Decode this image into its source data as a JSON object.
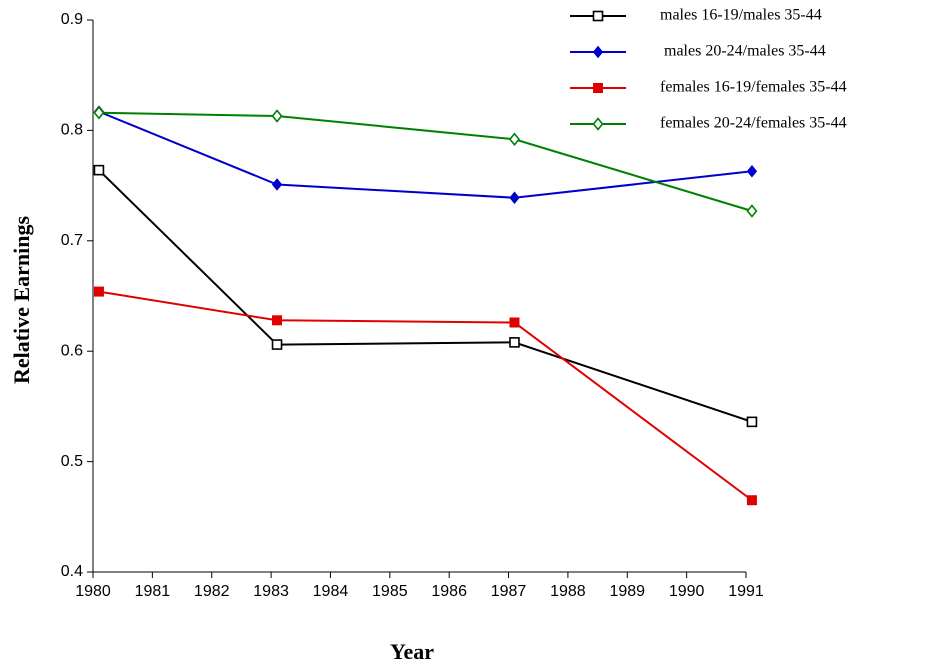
{
  "chart_data": {
    "type": "line",
    "x_label": "Year",
    "y_label": "Relative Earnings",
    "x": [
      1980.1,
      1983.1,
      1987.1,
      1991.1
    ],
    "series": [
      {
        "name": "males 16-19/males 35-44",
        "color": "#000000",
        "marker": "open-square",
        "values": [
          0.764,
          0.606,
          0.608,
          0.536
        ]
      },
      {
        "name": " males 20-24/males 35-44",
        "color": "#0000cc",
        "marker": "filled-diamond",
        "values": [
          0.817,
          0.751,
          0.739,
          0.763
        ]
      },
      {
        "name": "females 16-19/females 35-44",
        "color": "#e00000",
        "marker": "filled-square",
        "values": [
          0.654,
          0.628,
          0.626,
          0.465
        ]
      },
      {
        "name": "females 20-24/females 35-44",
        "color": "#008000",
        "marker": "open-diamond",
        "values": [
          0.816,
          0.813,
          0.792,
          0.727
        ]
      }
    ],
    "xlim": [
      1980,
      1991
    ],
    "xticks": [
      1980,
      1981,
      1982,
      1983,
      1984,
      1985,
      1986,
      1987,
      1988,
      1989,
      1990,
      1991
    ],
    "ylim": [
      0.4,
      0.9
    ],
    "yticks": [
      0.4,
      0.5,
      0.6,
      0.7,
      0.8,
      0.9
    ],
    "legend": "top-right"
  }
}
